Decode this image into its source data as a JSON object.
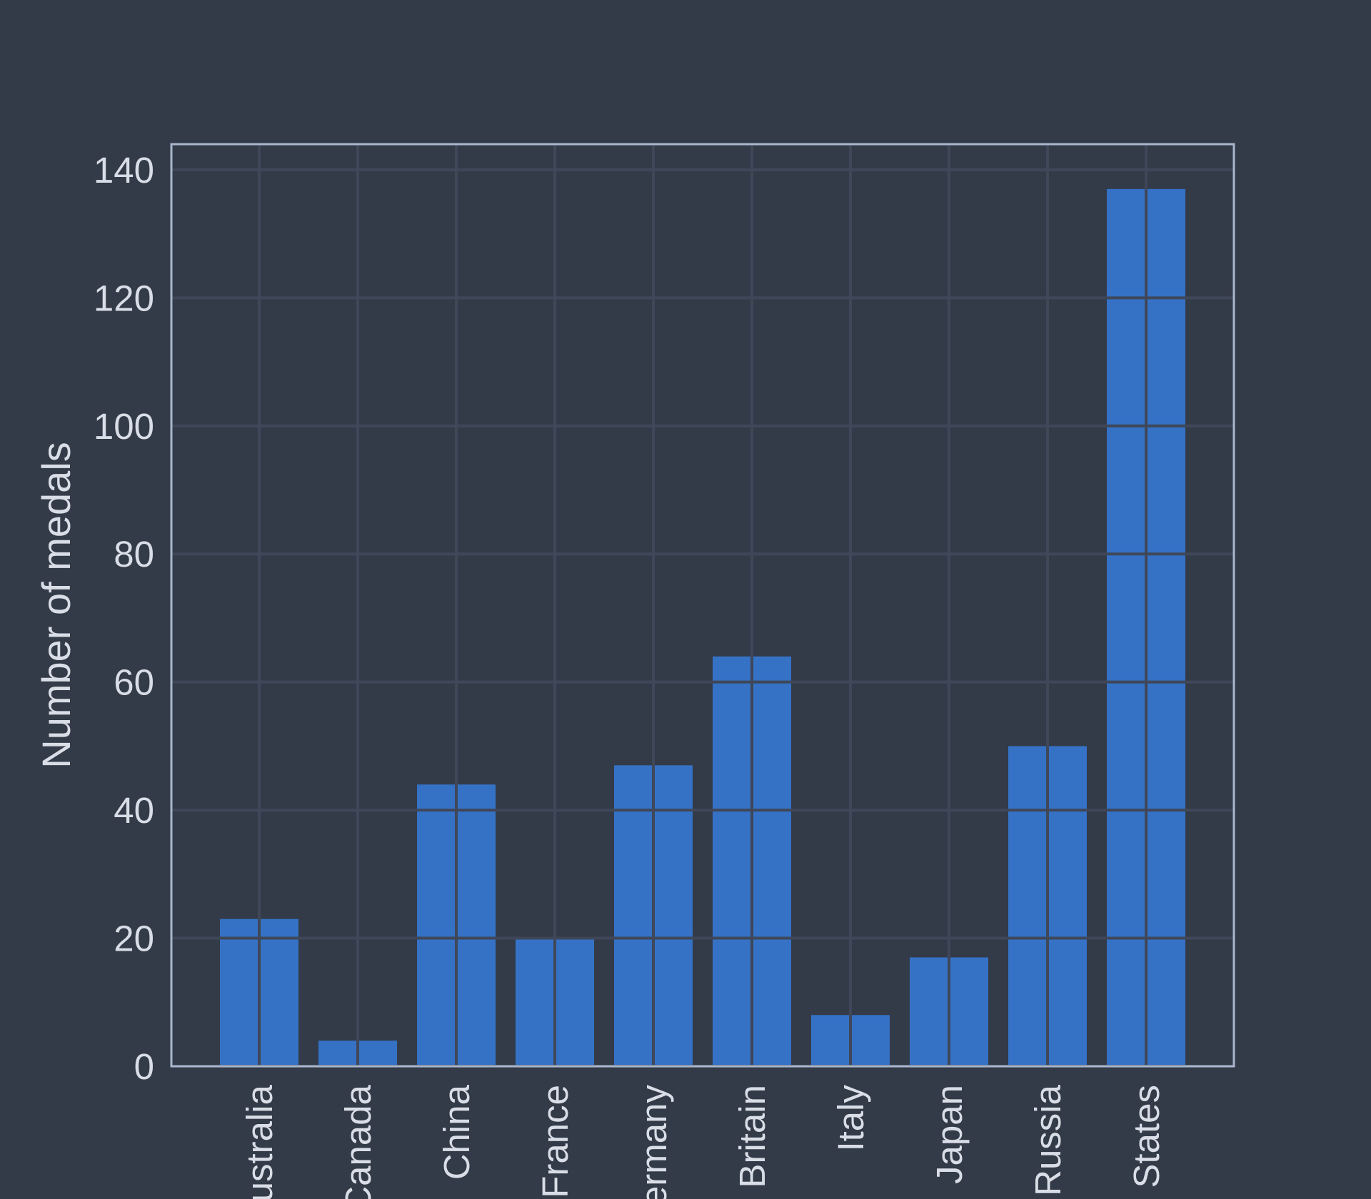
{
  "chart_data": {
    "type": "bar",
    "categories": [
      "Australia",
      "Canada",
      "China",
      "France",
      "Germany",
      "Great Britain",
      "Italy",
      "Japan",
      "Russia",
      "United States"
    ],
    "visible_tick_labels": [
      "ustralia",
      "Canada",
      "China",
      "France",
      "ermany",
      "Britain",
      "Italy",
      "Japan",
      "Russia",
      "States"
    ],
    "values": [
      23,
      4,
      44,
      20,
      47,
      64,
      8,
      17,
      50,
      137
    ],
    "title": "",
    "xlabel": "",
    "ylabel": "Number of medals",
    "ylim": [
      0,
      144
    ],
    "yticks": [
      0,
      20,
      40,
      60,
      80,
      100,
      120,
      140
    ],
    "grid": true,
    "legend": "none",
    "colors": {
      "background": "#333a48",
      "bar": "#3572c6",
      "grid": "#3f4758",
      "frame": "#a9b6cc",
      "text": "#d9dde6"
    }
  }
}
